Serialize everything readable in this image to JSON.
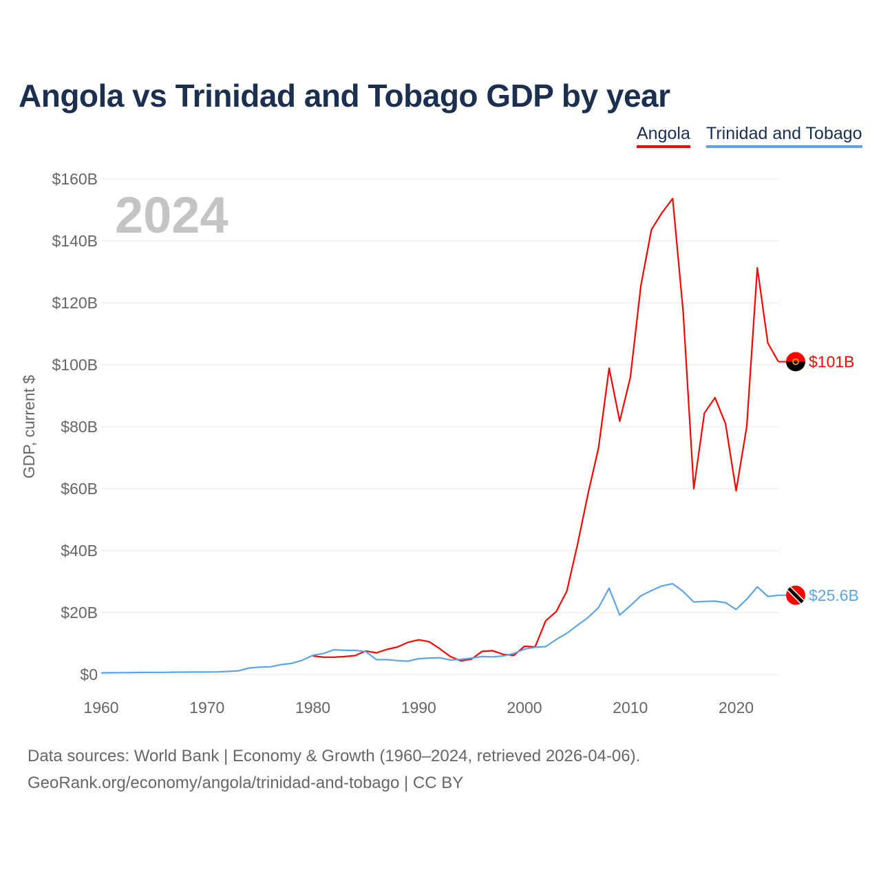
{
  "chart_data": {
    "type": "line",
    "title": "Angola vs Trinidad and Tobago GDP by year",
    "xlabel": "",
    "ylabel": "GDP, current $",
    "year_watermark": "2024",
    "xlim": [
      1960,
      2024
    ],
    "ylim": [
      0,
      160
    ],
    "grid": true,
    "legend_position": "top-right",
    "x_ticks": [
      1960,
      1970,
      1980,
      1990,
      2000,
      2010,
      2020
    ],
    "y_ticks": [
      0,
      20,
      40,
      60,
      80,
      100,
      120,
      140,
      160
    ],
    "y_tick_labels": [
      "$0",
      "$20B",
      "$40B",
      "$60B",
      "$80B",
      "$100B",
      "$120B",
      "$140B",
      "$160B"
    ],
    "series": [
      {
        "name": "Angola",
        "color": "#ff0000",
        "end_label": "$101B",
        "start_year": 1980,
        "values": [
          6.0,
          5.6,
          5.6,
          5.8,
          6.1,
          7.6,
          7.0,
          8.1,
          8.9,
          10.4,
          11.2,
          10.6,
          8.3,
          5.8,
          4.4,
          5.0,
          7.5,
          7.7,
          6.5,
          6.2,
          9.1,
          8.9,
          17.3,
          20.3,
          26.9,
          41.8,
          58.3,
          73.2,
          98.9,
          81.8,
          95.9,
          125.5,
          143.7,
          149.1,
          153.7,
          117.0,
          60.0,
          84.4,
          89.4,
          81.0,
          59.3,
          80.0,
          131.3,
          107.0,
          101.0
        ]
      },
      {
        "name": "Trinidad and Tobago",
        "color": "#5ba4e8",
        "end_label": "$25.6B",
        "start_year": 1960,
        "values": [
          0.54,
          0.57,
          0.6,
          0.65,
          0.68,
          0.7,
          0.72,
          0.76,
          0.78,
          0.8,
          0.8,
          0.85,
          1.0,
          1.2,
          2.1,
          2.4,
          2.5,
          3.2,
          3.6,
          4.6,
          6.2,
          6.8,
          8.0,
          7.8,
          7.8,
          7.4,
          4.8,
          4.8,
          4.5,
          4.3,
          5.1,
          5.3,
          5.4,
          4.7,
          4.9,
          5.3,
          5.8,
          5.7,
          6.0,
          6.8,
          8.2,
          8.8,
          9.0,
          11.3,
          13.3,
          15.9,
          18.4,
          21.6,
          27.9,
          19.2,
          22.2,
          25.4,
          27.1,
          28.6,
          29.3,
          26.8,
          23.4,
          23.6,
          23.7,
          23.2,
          21.0,
          24.3,
          28.3,
          25.2,
          25.6
        ]
      }
    ]
  },
  "footer": {
    "line1": "Data sources: World Bank | Economy & Growth (1960–2024, retrieved 2026-04-06).",
    "line2": "GeoRank.org/economy/angola/trinidad-and-tobago | CC BY"
  }
}
